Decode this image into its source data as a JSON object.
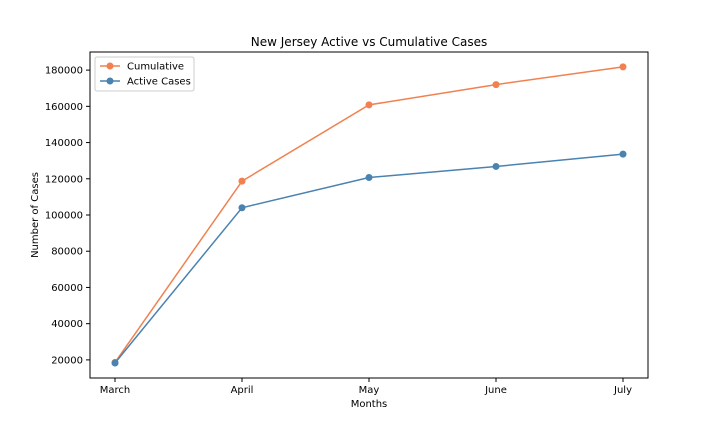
{
  "chart_data": {
    "type": "line",
    "title": "New Jersey Active vs Cumulative Cases",
    "xlabel": "Months",
    "ylabel": "Number of Cases",
    "categories": [
      "March",
      "April",
      "May",
      "June",
      "July"
    ],
    "ylim": [
      10000,
      190000
    ],
    "yticks": [
      20000,
      40000,
      60000,
      80000,
      100000,
      120000,
      140000,
      160000,
      180000
    ],
    "grid": false,
    "legend_position": "upper-left",
    "series": [
      {
        "name": "Cumulative",
        "color": "#f28050",
        "values": [
          18600,
          118700,
          160800,
          172000,
          181800
        ]
      },
      {
        "name": "Active Cases",
        "color": "#4a82b0",
        "values": [
          18300,
          104000,
          120700,
          126800,
          133600
        ]
      }
    ]
  }
}
